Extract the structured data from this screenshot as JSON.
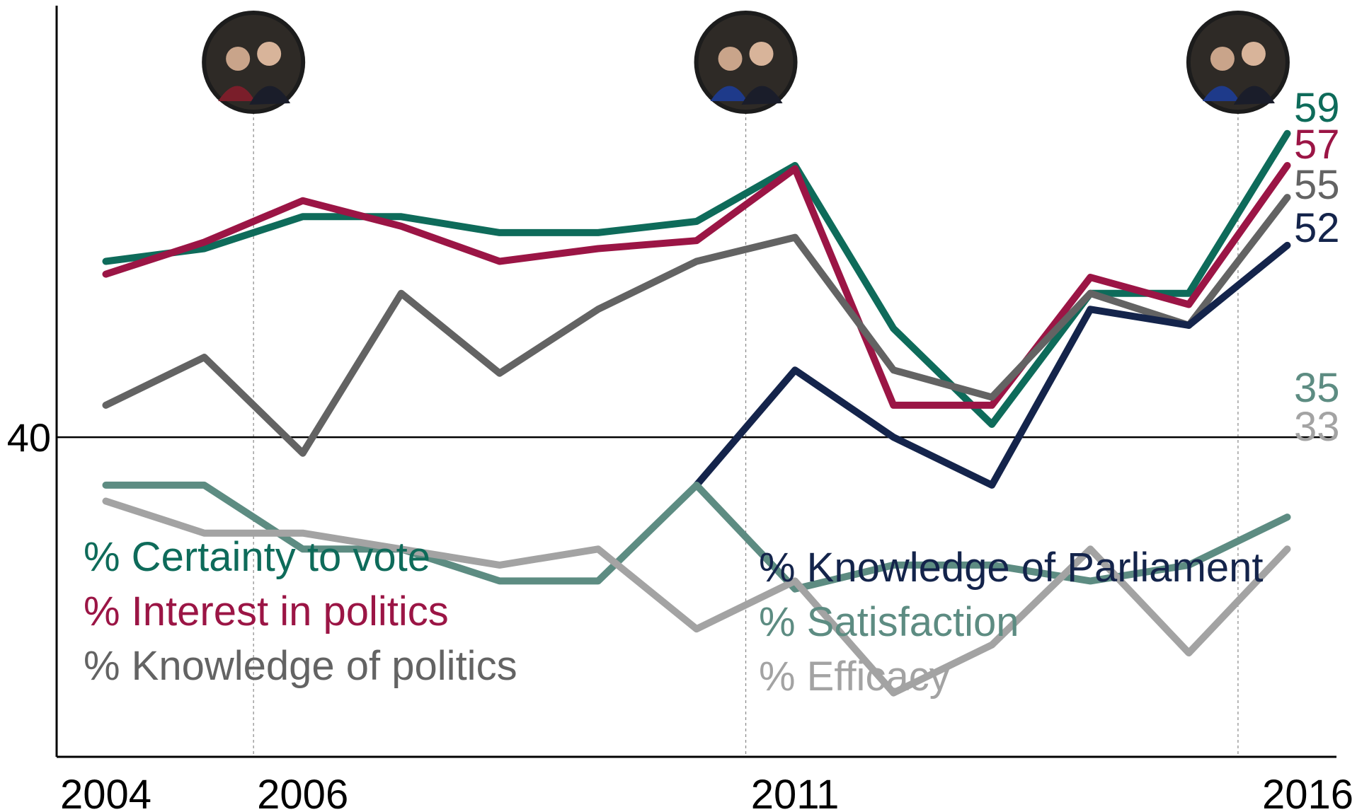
{
  "chart_data": {
    "type": "line",
    "title": "",
    "xlabel": "",
    "ylabel": "",
    "x": [
      2004,
      2005,
      2006,
      2007,
      2008,
      2009,
      2010,
      2011,
      2012,
      2013,
      2014,
      2015,
      2016
    ],
    "x_tick_labels": [
      "2004",
      "2006",
      "2011",
      "2016"
    ],
    "x_tick_values": [
      2004,
      2006,
      2011,
      2016
    ],
    "reference_line": {
      "value": 40,
      "label": "40"
    },
    "election_markers": [
      2005.5,
      2010.5,
      2015.5
    ],
    "xlim": [
      2003.5,
      2016.5
    ],
    "ylim": [
      20,
      67
    ],
    "grid": false,
    "series": [
      {
        "name": "% Certainty to vote",
        "color": "#0e6b5a",
        "end_label": "59",
        "values": [
          51,
          51.8,
          53.8,
          53.8,
          52.8,
          52.8,
          53.5,
          57,
          46.8,
          40.8,
          49,
          49,
          59
        ]
      },
      {
        "name": "% Interest in politics",
        "color": "#9b1545",
        "end_label": "57",
        "values": [
          50.2,
          52.2,
          54.8,
          53.2,
          51,
          51.8,
          52.3,
          56.8,
          42,
          42,
          50,
          48.3,
          57
        ]
      },
      {
        "name": "% Knowledge of politics",
        "color": "#636363",
        "end_label": "55",
        "values": [
          42,
          45,
          39,
          49,
          44,
          48,
          51,
          52.5,
          44.2,
          42.5,
          49,
          47,
          55
        ]
      },
      {
        "name": "% Knowledge of Parliament",
        "color": "#14244b",
        "end_label": "52",
        "values": [
          null,
          null,
          null,
          null,
          null,
          null,
          37,
          44.2,
          40,
          37,
          48,
          47,
          52
        ]
      },
      {
        "name": "% Satisfaction",
        "color": "#5d8c82",
        "end_label": "35",
        "values": [
          37,
          37,
          33,
          33,
          31,
          31,
          37,
          30.5,
          32,
          32,
          31,
          32,
          35
        ]
      },
      {
        "name": "% Efficacy",
        "color": "#a3a3a3",
        "end_label": "33",
        "values": [
          36,
          34,
          34,
          33,
          32,
          33,
          28,
          31,
          24,
          27,
          33,
          26.5,
          33
        ]
      }
    ],
    "legend": [
      {
        "label": "% Certainty to vote",
        "color": "#0e6b5a"
      },
      {
        "label": "% Interest in politics",
        "color": "#9b1545"
      },
      {
        "label": "% Knowledge of politics",
        "color": "#636363"
      },
      {
        "label": "% Knowledge of Parliament",
        "color": "#14244b"
      },
      {
        "label": "% Satisfaction",
        "color": "#5d8c82"
      },
      {
        "label": "% Efficacy",
        "color": "#a3a3a3"
      }
    ],
    "photo_markers": [
      {
        "icon": "couple-photo-icon",
        "x": 2005.5
      },
      {
        "icon": "couple-photo-icon",
        "x": 2010.5
      },
      {
        "icon": "couple-photo-icon",
        "x": 2015.5
      }
    ]
  }
}
